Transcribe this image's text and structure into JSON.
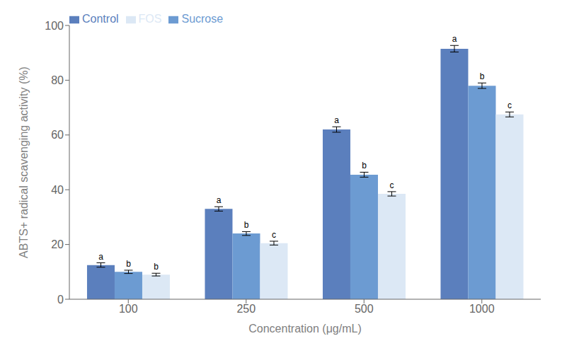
{
  "chart_data": {
    "type": "bar",
    "categories": [
      "100",
      "250",
      "500",
      "1000"
    ],
    "series": [
      {
        "name": "Control",
        "color": "#5b7fbd",
        "values": [
          12.5,
          33.0,
          62.0,
          91.5
        ],
        "errors": [
          0.8,
          0.8,
          1.0,
          1.2
        ],
        "letters": [
          "a",
          "a",
          "a",
          "a"
        ]
      },
      {
        "name": "Sucrose",
        "color": "#6c9bd2",
        "values": [
          10.0,
          24.0,
          45.5,
          78.0
        ],
        "errors": [
          0.6,
          0.7,
          0.9,
          1.0
        ],
        "letters": [
          "b",
          "b",
          "b",
          "b"
        ]
      },
      {
        "name": "FOS",
        "color": "#dce8f5",
        "values": [
          9.0,
          20.5,
          38.5,
          67.5
        ],
        "errors": [
          0.5,
          0.7,
          0.8,
          0.9
        ],
        "letters": [
          "b",
          "c",
          "c",
          "c"
        ]
      }
    ],
    "xlabel": "Concentration (μg/mL)",
    "ylabel": "ABTS+ radical scavenging activity (%)",
    "ylim": [
      0,
      100
    ],
    "yticks": [
      0,
      20,
      40,
      60,
      80,
      100
    ],
    "grid": false,
    "legend": "upper left"
  }
}
